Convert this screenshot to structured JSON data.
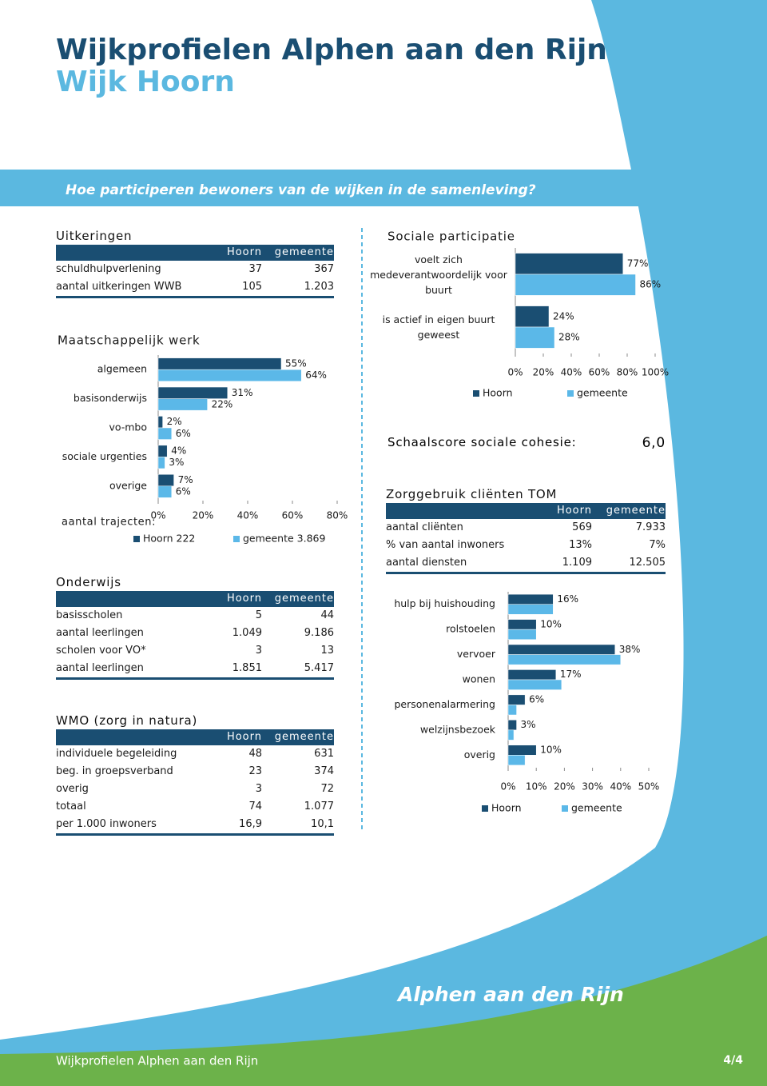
{
  "header": {
    "title": "Wijkprofielen Alphen aan den Rijn",
    "subtitle": "Wijk Hoorn"
  },
  "banner": "Hoe participeren bewoners van de wijken in de samenleving?",
  "uitkeringen": {
    "title": "Uitkeringen",
    "columns": [
      "Hoorn",
      "gemeente"
    ],
    "rows": [
      [
        "schuldhulpverlening",
        "37",
        "367"
      ],
      [
        "aantal uitkeringen WWB",
        "105",
        "1.203"
      ]
    ]
  },
  "onderwijs": {
    "title": "Onderwijs",
    "columns": [
      "Hoorn",
      "gemeente"
    ],
    "rows": [
      [
        "basisscholen",
        "5",
        "44"
      ],
      [
        "aantal leerlingen",
        "1.049",
        "9.186"
      ],
      [
        "scholen voor VO*",
        "3",
        "13"
      ],
      [
        "aantal leerlingen",
        "1.851",
        "5.417"
      ]
    ]
  },
  "wmo": {
    "title": "WMO (zorg in natura)",
    "columns": [
      "Hoorn",
      "gemeente"
    ],
    "rows": [
      [
        "individuele begeleiding",
        "48",
        "631"
      ],
      [
        "beg. in groepsverband",
        "23",
        "374"
      ],
      [
        "overig",
        "3",
        "72"
      ],
      [
        "totaal",
        "74",
        "1.077"
      ],
      [
        "per 1.000 inwoners",
        "16,9",
        "10,1"
      ]
    ]
  },
  "sociale_cohesie": {
    "label": "Schaalscore sociale cohesie:",
    "value": "6,0"
  },
  "zorggebruik": {
    "title": "Zorggebruik cliënten TOM",
    "columns": [
      "Hoorn",
      "gemeente"
    ],
    "rows": [
      [
        "aantal cliënten",
        "569",
        "7.933"
      ],
      [
        "% van aantal inwoners",
        "13%",
        "7%"
      ],
      [
        "aantal diensten",
        "1.109",
        "12.505"
      ]
    ]
  },
  "footer": {
    "text": "Wijkprofielen Alphen aan den Rijn",
    "page": "4/4",
    "logo": "Alphen aan den Rijn"
  },
  "chart_data": [
    {
      "type": "hbar",
      "title": "Maatschappelijk werk",
      "categories": [
        "algemeen",
        "basisonderwijs",
        "vo-mbo",
        "sociale urgenties",
        "overige"
      ],
      "series": [
        {
          "name": "Hoorn 222",
          "color": "#1a4e72",
          "values": [
            55,
            31,
            2,
            4,
            7
          ],
          "value_labels": [
            "55%",
            "31%",
            "2%",
            "4%",
            "7%"
          ]
        },
        {
          "name": "gemeente 3.869",
          "color": "#5bb8e8",
          "values": [
            64,
            22,
            6,
            3,
            6
          ],
          "value_labels": [
            "64%",
            "22%",
            "6%",
            "3%",
            "6%"
          ]
        }
      ],
      "xlim": [
        0,
        80
      ],
      "xticks": [
        {
          "value": 0,
          "label": "0%"
        },
        {
          "value": 20,
          "label": "20%"
        },
        {
          "value": 40,
          "label": "40%"
        },
        {
          "value": 60,
          "label": "60%"
        },
        {
          "value": 80,
          "label": "80%"
        }
      ],
      "annotation": "aantal trajecten:"
    },
    {
      "type": "hbar",
      "title": "Sociale participatie",
      "categories": [
        "voelt zich medeverantwoordelijk voor buurt",
        "is actief in eigen buurt geweest"
      ],
      "series": [
        {
          "name": "Hoorn",
          "color": "#1a4e72",
          "values": [
            77,
            24
          ],
          "value_labels": [
            "77%",
            "24%"
          ]
        },
        {
          "name": "gemeente",
          "color": "#5bb8e8",
          "values": [
            86,
            28
          ],
          "value_labels": [
            "86%",
            "28%"
          ]
        }
      ],
      "xlim": [
        0,
        100
      ],
      "xticks": [
        {
          "value": 0,
          "label": "0%"
        },
        {
          "value": 20,
          "label": "20%"
        },
        {
          "value": 40,
          "label": "40%"
        },
        {
          "value": 60,
          "label": "60%"
        },
        {
          "value": 80,
          "label": "80%"
        },
        {
          "value": 100,
          "label": "100%"
        }
      ]
    },
    {
      "type": "hbar",
      "categories": [
        "hulp bij huishouding",
        "rolstoelen",
        "vervoer",
        "wonen",
        "personenalarmering",
        "welzijnsbezoek",
        "overig"
      ],
      "series": [
        {
          "name": "Hoorn",
          "color": "#1a4e72",
          "values": [
            16,
            10,
            38,
            17,
            6,
            3,
            10
          ],
          "value_labels": [
            "16%",
            "10%",
            "38%",
            "17%",
            "6%",
            "3%",
            "10%"
          ]
        },
        {
          "name": "gemeente",
          "color": "#5bb8e8",
          "values": [
            16,
            10,
            40,
            19,
            3,
            2,
            6
          ]
        }
      ],
      "xlim": [
        0,
        50
      ],
      "xticks": [
        {
          "value": 0,
          "label": "0%"
        },
        {
          "value": 10,
          "label": "10%"
        },
        {
          "value": 20,
          "label": "20%"
        },
        {
          "value": 30,
          "label": "30%"
        },
        {
          "value": 40,
          "label": "40%"
        },
        {
          "value": 50,
          "label": "50%"
        }
      ]
    }
  ]
}
